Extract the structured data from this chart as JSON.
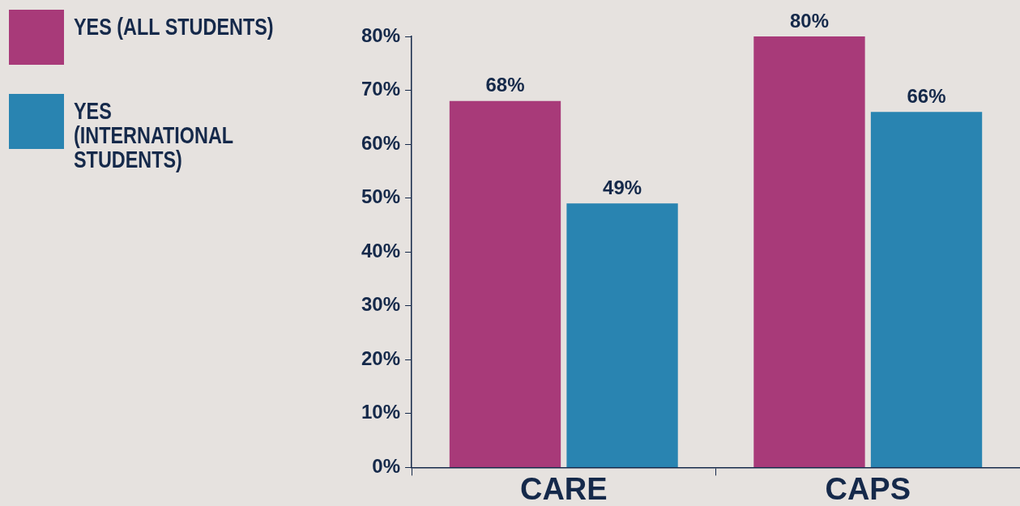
{
  "chart_data": {
    "type": "bar",
    "categories": [
      "CARE",
      "CAPS"
    ],
    "series": [
      {
        "name": "YES (ALL STUDENTS)",
        "color": "#a83a79",
        "values": [
          68,
          80
        ],
        "value_labels": [
          "68%",
          "80%"
        ]
      },
      {
        "name": "YES (INTERNATIONAL STUDENTS)",
        "color": "#2984b1",
        "values": [
          49,
          66
        ],
        "value_labels": [
          "49%",
          "66%"
        ]
      }
    ],
    "ylim": [
      0,
      80
    ],
    "yticks": [
      {
        "value": 0,
        "label": "0%"
      },
      {
        "value": 10,
        "label": "10%"
      },
      {
        "value": 20,
        "label": "20%"
      },
      {
        "value": 30,
        "label": "30%"
      },
      {
        "value": 40,
        "label": "40%"
      },
      {
        "value": 50,
        "label": "50%"
      },
      {
        "value": 60,
        "label": "60%"
      },
      {
        "value": 70,
        "label": "70%"
      },
      {
        "value": 80,
        "label": "80%"
      }
    ],
    "grid": false,
    "legend": "top left"
  }
}
